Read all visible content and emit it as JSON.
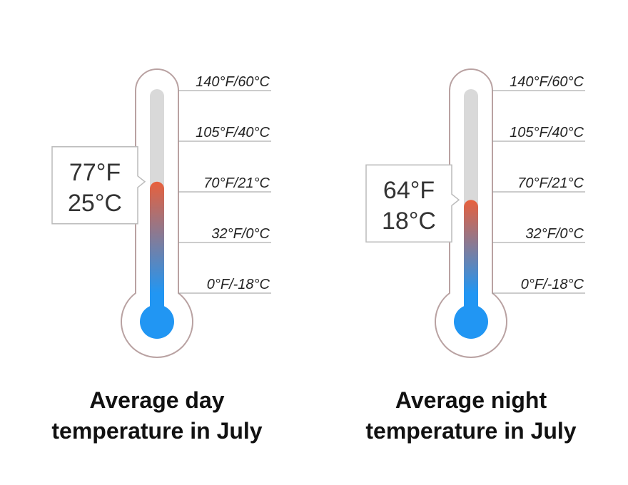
{
  "chart_data": [
    {
      "type": "thermometer",
      "title": "Average day temperature in July",
      "value": 77,
      "value_labels": [
        "77°F",
        "25°C"
      ],
      "ylim": [
        0,
        140
      ],
      "yticks": [
        {
          "value": 0,
          "label": "0°F/-18°C"
        },
        {
          "value": 32,
          "label": "32°F/0°C"
        },
        {
          "value": 70,
          "label": "70°F/21°C"
        },
        {
          "value": 105,
          "label": "105°F/40°C"
        },
        {
          "value": 140,
          "label": "140°F/60°C"
        }
      ],
      "colors": [
        "#e8603c",
        "#2196f3"
      ]
    },
    {
      "type": "thermometer",
      "title": "Average night temperature in July",
      "value": 64,
      "value_labels": [
        "64°F",
        "18°C"
      ],
      "ylim": [
        0,
        140
      ],
      "yticks": [
        {
          "value": 0,
          "label": "0°F/-18°C"
        },
        {
          "value": 32,
          "label": "32°F/0°C"
        },
        {
          "value": 70,
          "label": "70°F/21°C"
        },
        {
          "value": 105,
          "label": "105°F/40°C"
        },
        {
          "value": 140,
          "label": "140°F/60°C"
        }
      ],
      "colors": [
        "#e8603c",
        "#2196f3"
      ]
    }
  ]
}
